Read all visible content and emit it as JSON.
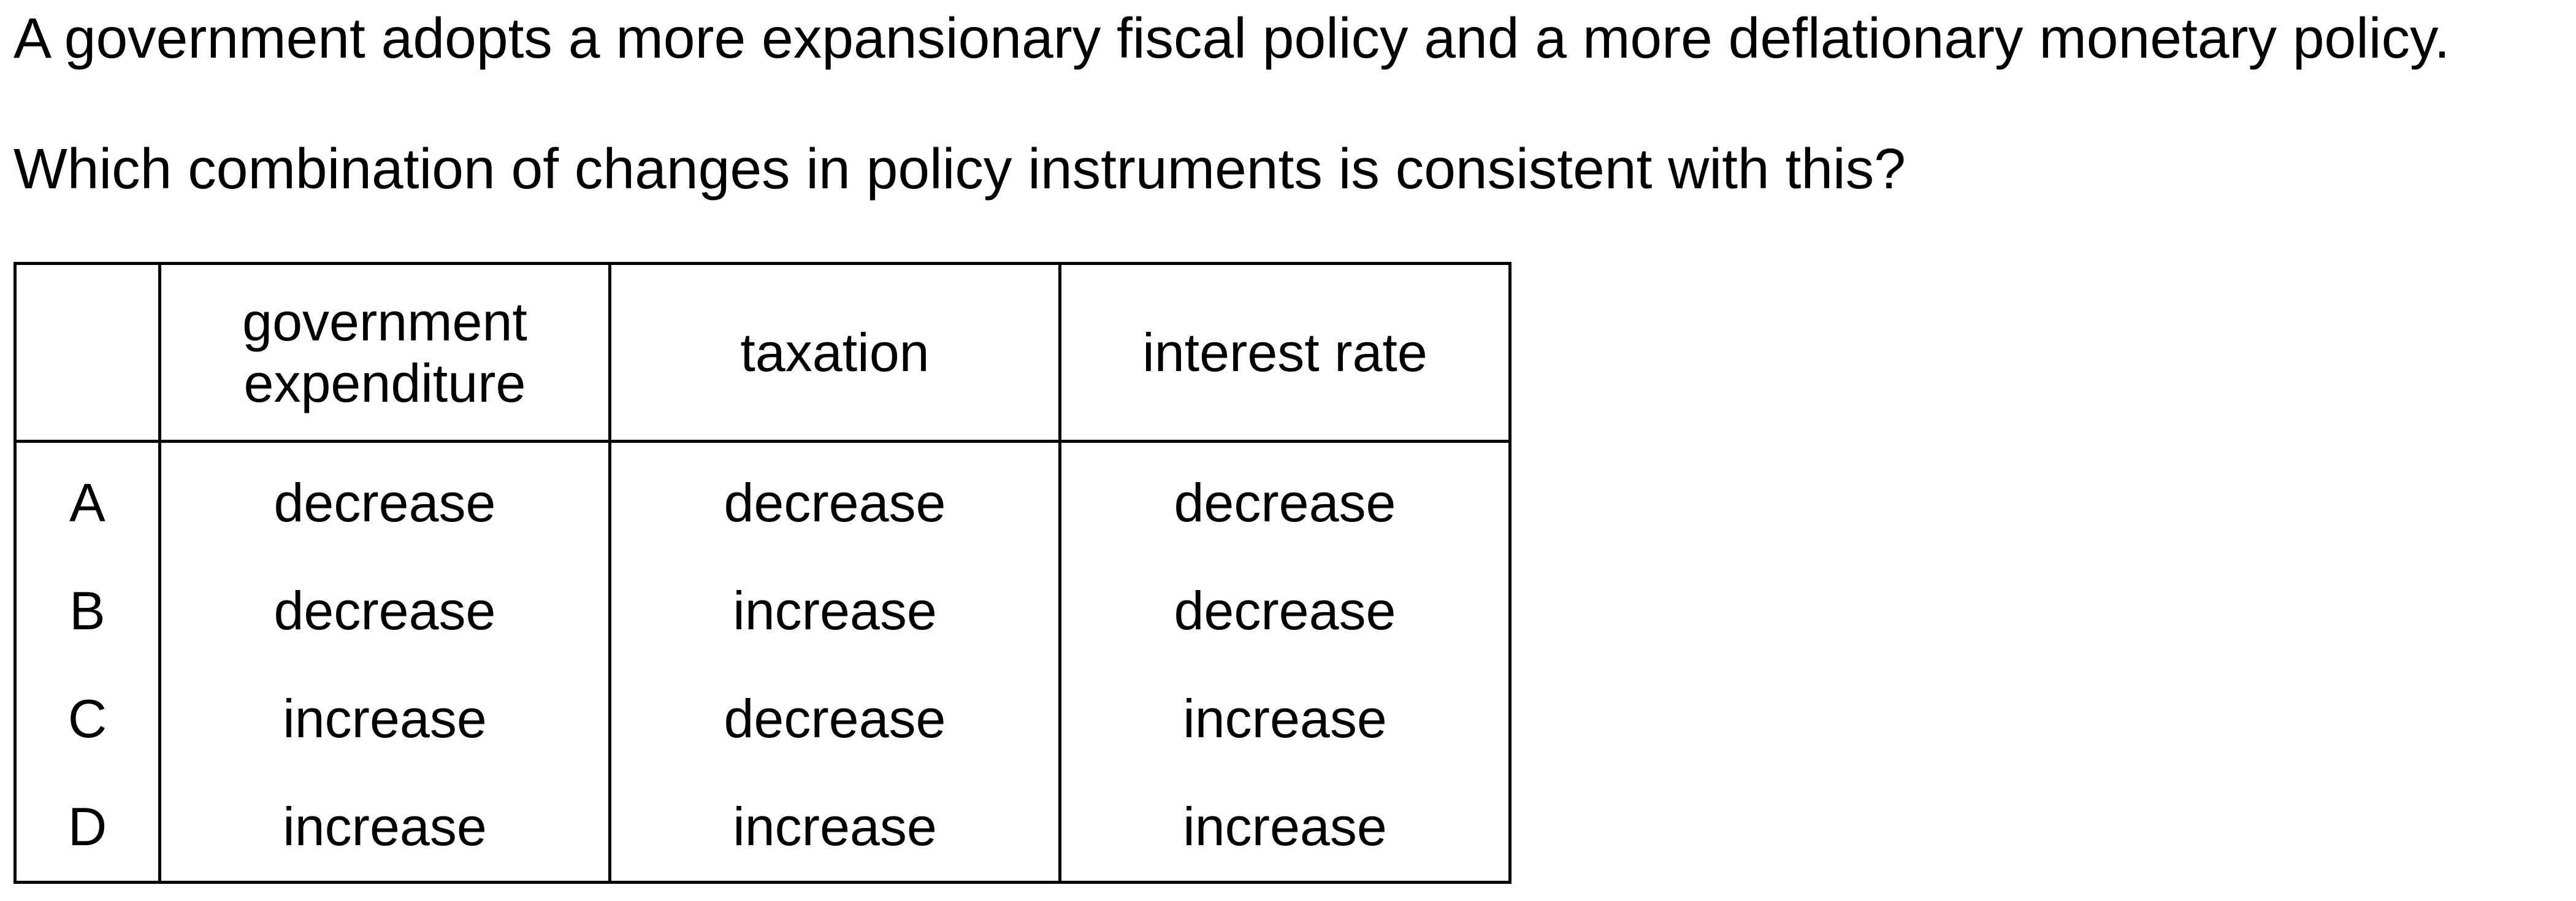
{
  "question": {
    "stem": "A government adopts a more expansionary fiscal policy and a more deflationary monetary policy.",
    "prompt": "Which combination of changes in policy instruments is consistent with this?"
  },
  "table": {
    "headers": [
      "",
      "government expenditure",
      "taxation",
      "interest rate"
    ],
    "rows": [
      {
        "letter": "A",
        "government_expenditure": "decrease",
        "taxation": "decrease",
        "interest_rate": "decrease"
      },
      {
        "letter": "B",
        "government_expenditure": "decrease",
        "taxation": "increase",
        "interest_rate": "decrease"
      },
      {
        "letter": "C",
        "government_expenditure": "increase",
        "taxation": "decrease",
        "interest_rate": "increase"
      },
      {
        "letter": "D",
        "government_expenditure": "increase",
        "taxation": "increase",
        "interest_rate": "increase"
      }
    ]
  }
}
